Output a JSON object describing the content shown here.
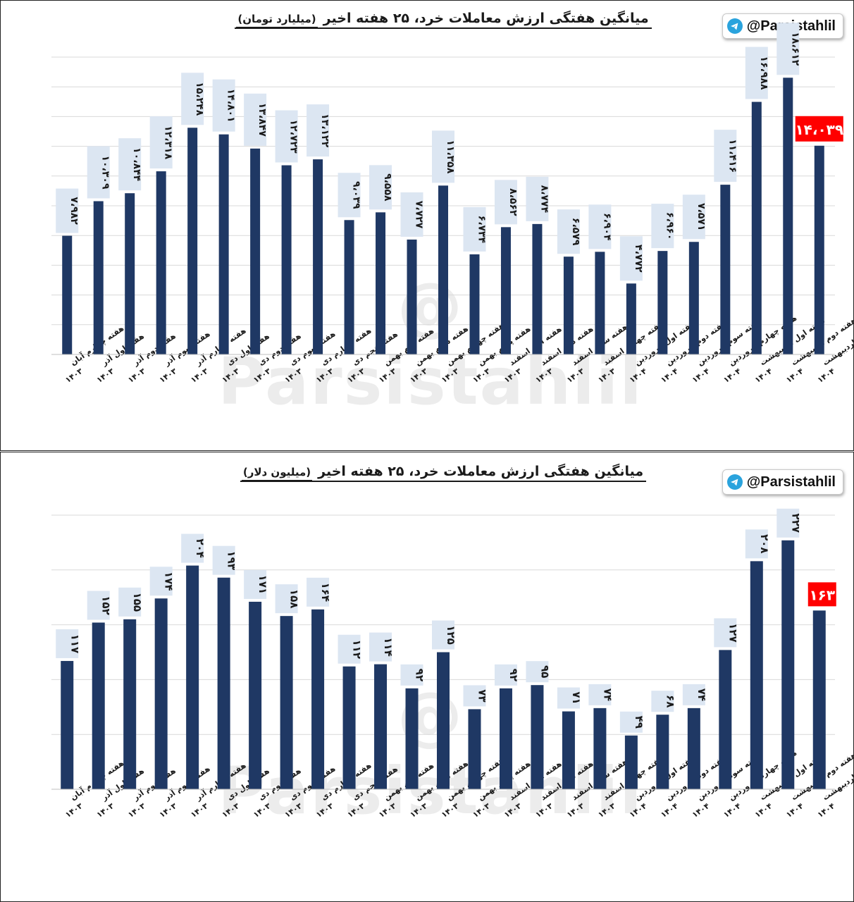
{
  "brand": {
    "handle": "@Parsistahlil",
    "watermark": "@ Parsistahlil"
  },
  "colors": {
    "bar": "#1f3864",
    "highlight": "#ff0000",
    "label_bg": "#dce6f2",
    "grid": "#d9d9d9"
  },
  "chart_data": [
    {
      "type": "bar",
      "title": "میانگین هفتگی ارزش معاملات خرد، ۲۵ هفته اخیر",
      "unit": "(میلیارد تومان)",
      "categories": [
        "هفته چهارم آبان ۱۴۰۳",
        "هفته اول آذر ۱۴۰۳",
        "هفته دوم آذر ۱۴۰۳",
        "هفته سوم آذر ۱۴۰۳",
        "هفته چهارم آذر ۱۴۰۳",
        "هفته اول دی ۱۴۰۳",
        "هفته دوم دی ۱۴۰۳",
        "هفته سوم دی ۱۴۰۳",
        "هفته چهارم دی ۱۴۰۳",
        "هفته پنجم دی ۱۴۰۳",
        "هفته دوم بهمن ۱۴۰۳",
        "هفته سوم بهمن ۱۴۰۳",
        "هفته چهارم بهمن ۱۴۰۳",
        "هفته پنجم بهمن ۱۴۰۳",
        "هفته اول اسفند ۱۴۰۳",
        "هفته دوم اسفند ۱۴۰۳",
        "هفته سوم اسفند ۱۴۰۳",
        "هفته چهارم اسفند ۱۴۰۳",
        "هفته اول فروردین ۱۴۰۴",
        "هفته دوم فروردین ۱۴۰۴",
        "هفته سوم فروردین ۱۴۰۴",
        "هفته چهارم فروردین ۱۴۰۴",
        "هفته اول اردیبهشت ۱۴۰۴",
        "هفته دوم اردیبهشت ۱۴۰۴",
        "هفته سوم اردیبهشت ۱۴۰۴"
      ],
      "values": [
        7982,
        10309,
        10844,
        12318,
        15248,
        14801,
        13847,
        12723,
        13122,
        9039,
        9558,
        7727,
        11358,
        6734,
        8562,
        8774,
        6579,
        6904,
        4772,
        6960,
        7571,
        11416,
        16988,
        18612,
        14039
      ],
      "value_labels": [
        "۷،۹۸۲",
        "۱۰،۳۰۹",
        "۱۰،۸۴۴",
        "۱۲،۳۱۸",
        "۱۵،۲۴۸",
        "۱۴،۸۰۱",
        "۱۳،۸۴۷",
        "۱۲،۷۲۳",
        "۱۳،۱۲۲",
        "۹،۰۳۹",
        "۹،۵۵۸",
        "۷،۷۲۷",
        "۱۱،۳۵۸",
        "۶،۷۳۴",
        "۸،۵۶۲",
        "۸،۷۷۴",
        "۶،۵۷۹",
        "۶،۹۰۴",
        "۴،۷۷۲",
        "۶،۹۶۰",
        "۷،۵۷۱",
        "۱۱،۴۱۶",
        "۱۶،۹۸۸",
        "۱۸،۶۱۲",
        "۱۴،۰۳۹"
      ],
      "highlight_index": 24,
      "ylim": [
        0,
        20000
      ],
      "grid": true
    },
    {
      "type": "bar",
      "title": "میانگین هفتگی ارزش معاملات خرد، ۲۵ هفته اخیر",
      "unit": "(میلیون دلار)",
      "categories": [
        "هفته چهارم آبان ۱۴۰۳",
        "هفته اول آذر ۱۴۰۳",
        "هفته دوم آذر ۱۴۰۳",
        "هفته سوم آذر ۱۴۰۳",
        "هفته چهارم آذر ۱۴۰۳",
        "هفته اول دی ۱۴۰۳",
        "هفته دوم دی ۱۴۰۳",
        "هفته سوم دی ۱۴۰۳",
        "هفته چهارم دی ۱۴۰۳",
        "هفته پنجم دی ۱۴۰۳",
        "هفته دوم بهمن ۱۴۰۳",
        "هفته سوم بهمن ۱۴۰۳",
        "هفته چهارم بهمن ۱۴۰۳",
        "هفته پنجم بهمن ۱۴۰۳",
        "هفته اول اسفند ۱۴۰۳",
        "هفته دوم اسفند ۱۴۰۳",
        "هفته سوم اسفند ۱۴۰۳",
        "هفته چهارم اسفند ۱۴۰۳",
        "هفته اول فروردین ۱۴۰۴",
        "هفته دوم فروردین ۱۴۰۴",
        "هفته سوم فروردین ۱۴۰۴",
        "هفته چهارم فروردین ۱۴۰۴",
        "هفته اول اردیبهشت ۱۴۰۴",
        "هفته دوم اردیبهشت ۱۴۰۴",
        "هفته سوم اردیبهشت ۱۴۰۴"
      ],
      "values": [
        117,
        152,
        155,
        174,
        204,
        193,
        171,
        158,
        164,
        112,
        114,
        92,
        125,
        73,
        92,
        95,
        71,
        74,
        49,
        68,
        74,
        127,
        208,
        227,
        163
      ],
      "value_labels": [
        "۱۱۷",
        "۱۵۲",
        "۱۵۵",
        "۱۷۴",
        "۲۰۴",
        "۱۹۳",
        "۱۷۱",
        "۱۵۸",
        "۱۶۴",
        "۱۱۲",
        "۱۱۴",
        "۹۲",
        "۱۲۵",
        "۷۳",
        "۹۲",
        "۹۵",
        "۷۱",
        "۷۴",
        "۴۹",
        "۶۸",
        "۷۴",
        "۱۲۷",
        "۲۰۸",
        "۲۲۷",
        "۱۶۳"
      ],
      "highlight_index": 24,
      "ylim": [
        0,
        250
      ],
      "grid": true
    }
  ]
}
